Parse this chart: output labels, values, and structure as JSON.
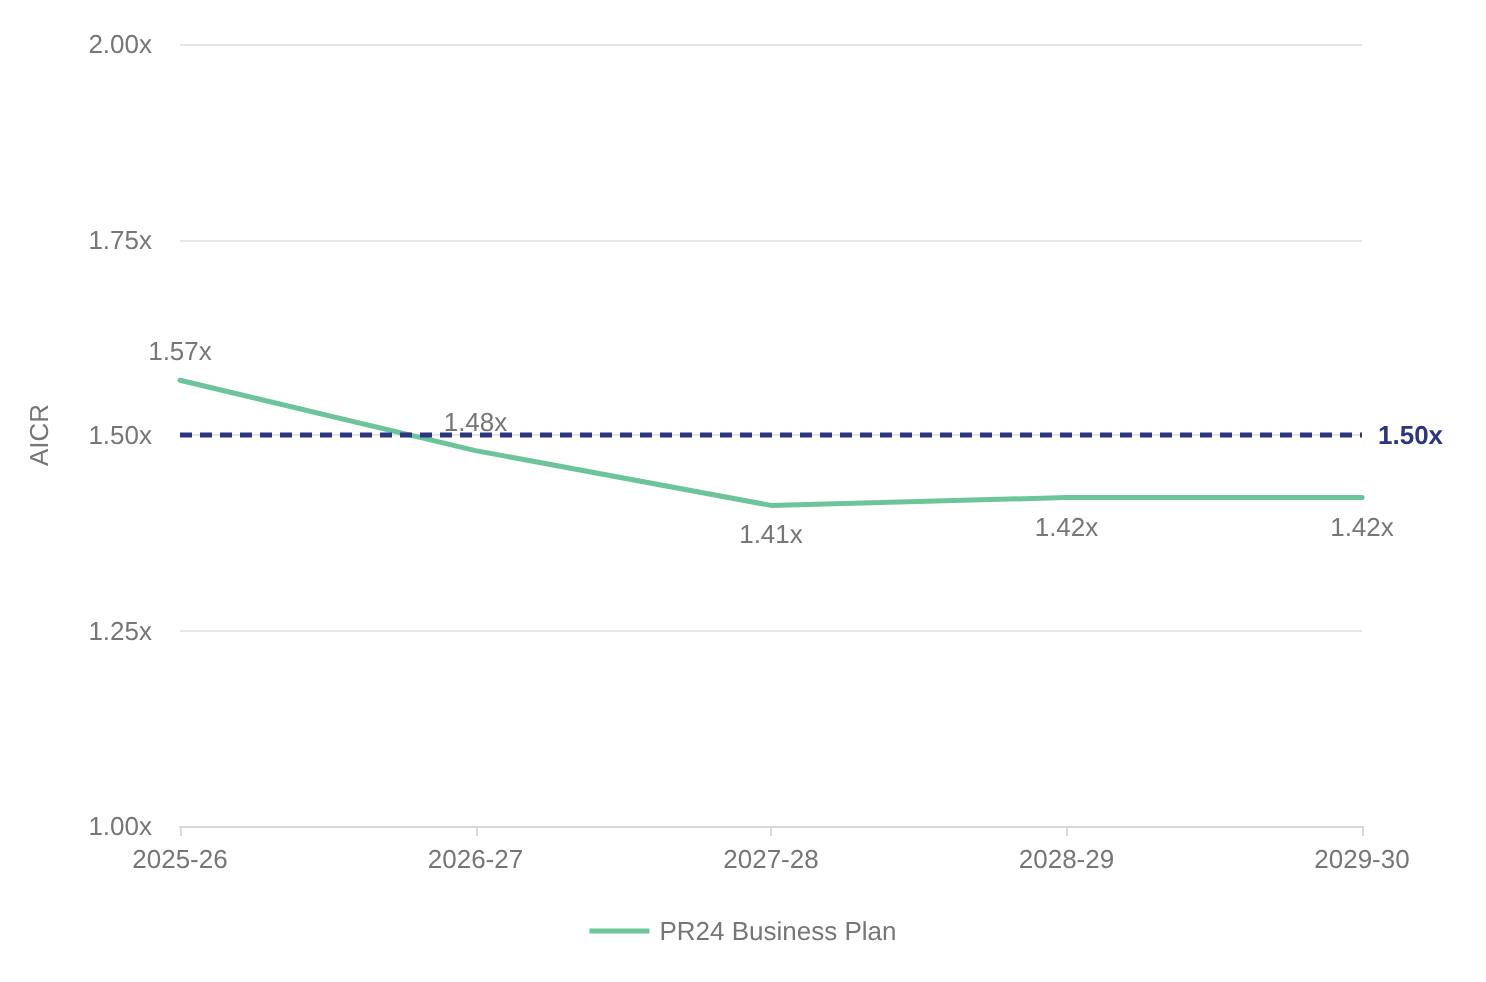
{
  "chart_data": {
    "type": "line",
    "ylabel": "AICR",
    "categories": [
      "2025-26",
      "2026-27",
      "2027-28",
      "2028-29",
      "2029-30"
    ],
    "series": [
      {
        "name": "PR24 Business Plan",
        "color": "#6cc49a",
        "values": [
          1.57,
          1.48,
          1.41,
          1.42,
          1.42
        ],
        "value_labels": [
          "1.57x",
          "1.48x",
          "1.41x",
          "1.42x",
          "1.42x"
        ]
      }
    ],
    "ylim": [
      1,
      2
    ],
    "yticks": [
      {
        "value": 1,
        "label": "1.00x"
      },
      {
        "value": 1.25,
        "label": "1.25x"
      },
      {
        "value": 1.5,
        "label": "1.50x"
      },
      {
        "value": 1.75,
        "label": "1.75x"
      },
      {
        "value": 2,
        "label": "2.00x"
      }
    ],
    "ref_lines": [
      {
        "axis": "y",
        "value": 1.5,
        "label": "1.50x",
        "color": "#2b3580",
        "line_style": "dashed"
      }
    ],
    "grid": "y",
    "legend": "bottom",
    "marker": "none",
    "line_style": "solid"
  }
}
